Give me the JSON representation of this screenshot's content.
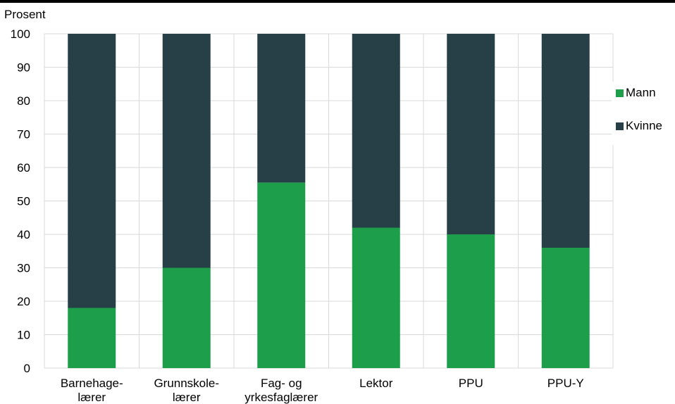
{
  "chart_data": {
    "type": "bar",
    "stacked": true,
    "ylabel": "Prosent",
    "ylim": [
      0,
      100
    ],
    "yticks": [
      0,
      10,
      20,
      30,
      40,
      50,
      60,
      70,
      80,
      90,
      100
    ],
    "categories": [
      [
        "Barnehage-",
        "lærer"
      ],
      [
        "Grunnskole-",
        "lærer"
      ],
      [
        "Fag- og",
        "yrkesfaglærer"
      ],
      [
        "Lektor"
      ],
      [
        "PPU"
      ],
      [
        "PPU-Y"
      ]
    ],
    "series": [
      {
        "name": "Mann",
        "color": "#1d9e4a",
        "values": [
          18,
          30,
          55.5,
          42,
          40,
          36
        ]
      },
      {
        "name": "Kvinne",
        "color": "#274048",
        "values": [
          82,
          70,
          44.5,
          58,
          60,
          64
        ]
      }
    ],
    "grid": true,
    "legend_position": "right"
  }
}
